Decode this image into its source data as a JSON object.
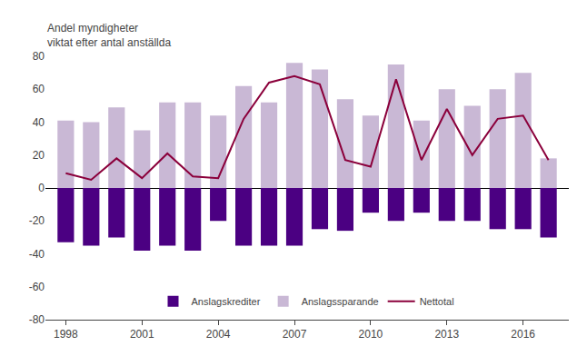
{
  "chart_data": {
    "type": "bar",
    "ylabel": "Andel myndigheter\nviktat efter antal anställda",
    "x": [
      1998,
      1999,
      2000,
      2001,
      2002,
      2003,
      2004,
      2005,
      2006,
      2007,
      2008,
      2009,
      2010,
      2011,
      2012,
      2013,
      2014,
      2015,
      2016,
      2017
    ],
    "series": [
      {
        "name": "Anslagskrediter",
        "type": "bar",
        "color": "#4B0082",
        "values": [
          -33,
          -35,
          -30,
          -38,
          -35,
          -38,
          -20,
          -35,
          -35,
          -35,
          -25,
          -26,
          -15,
          -20,
          -15,
          -20,
          -20,
          -25,
          -25,
          -30
        ]
      },
      {
        "name": "Anslagssparande",
        "type": "bar",
        "color": "#C9B8D5",
        "values": [
          41,
          40,
          49,
          35,
          52,
          52,
          44,
          62,
          52,
          76,
          72,
          54,
          44,
          75,
          41,
          60,
          50,
          60,
          70,
          18
        ]
      },
      {
        "name": "Nettotal",
        "type": "line",
        "color": "#8B003B",
        "values": [
          9,
          5,
          18,
          6,
          21,
          7,
          6,
          42,
          64,
          68,
          63,
          17,
          13,
          66,
          17,
          48,
          20,
          42,
          44,
          17
        ]
      }
    ],
    "xlim": [
      1997.2,
      2017.8
    ],
    "xticks": [
      1998,
      2001,
      2004,
      2007,
      2010,
      2013,
      2016
    ],
    "ylim": [
      -80,
      80
    ],
    "yticks": [
      -80,
      -60,
      -40,
      -20,
      0,
      20,
      40,
      60,
      80
    ],
    "grid": false,
    "legend": "lower center"
  }
}
